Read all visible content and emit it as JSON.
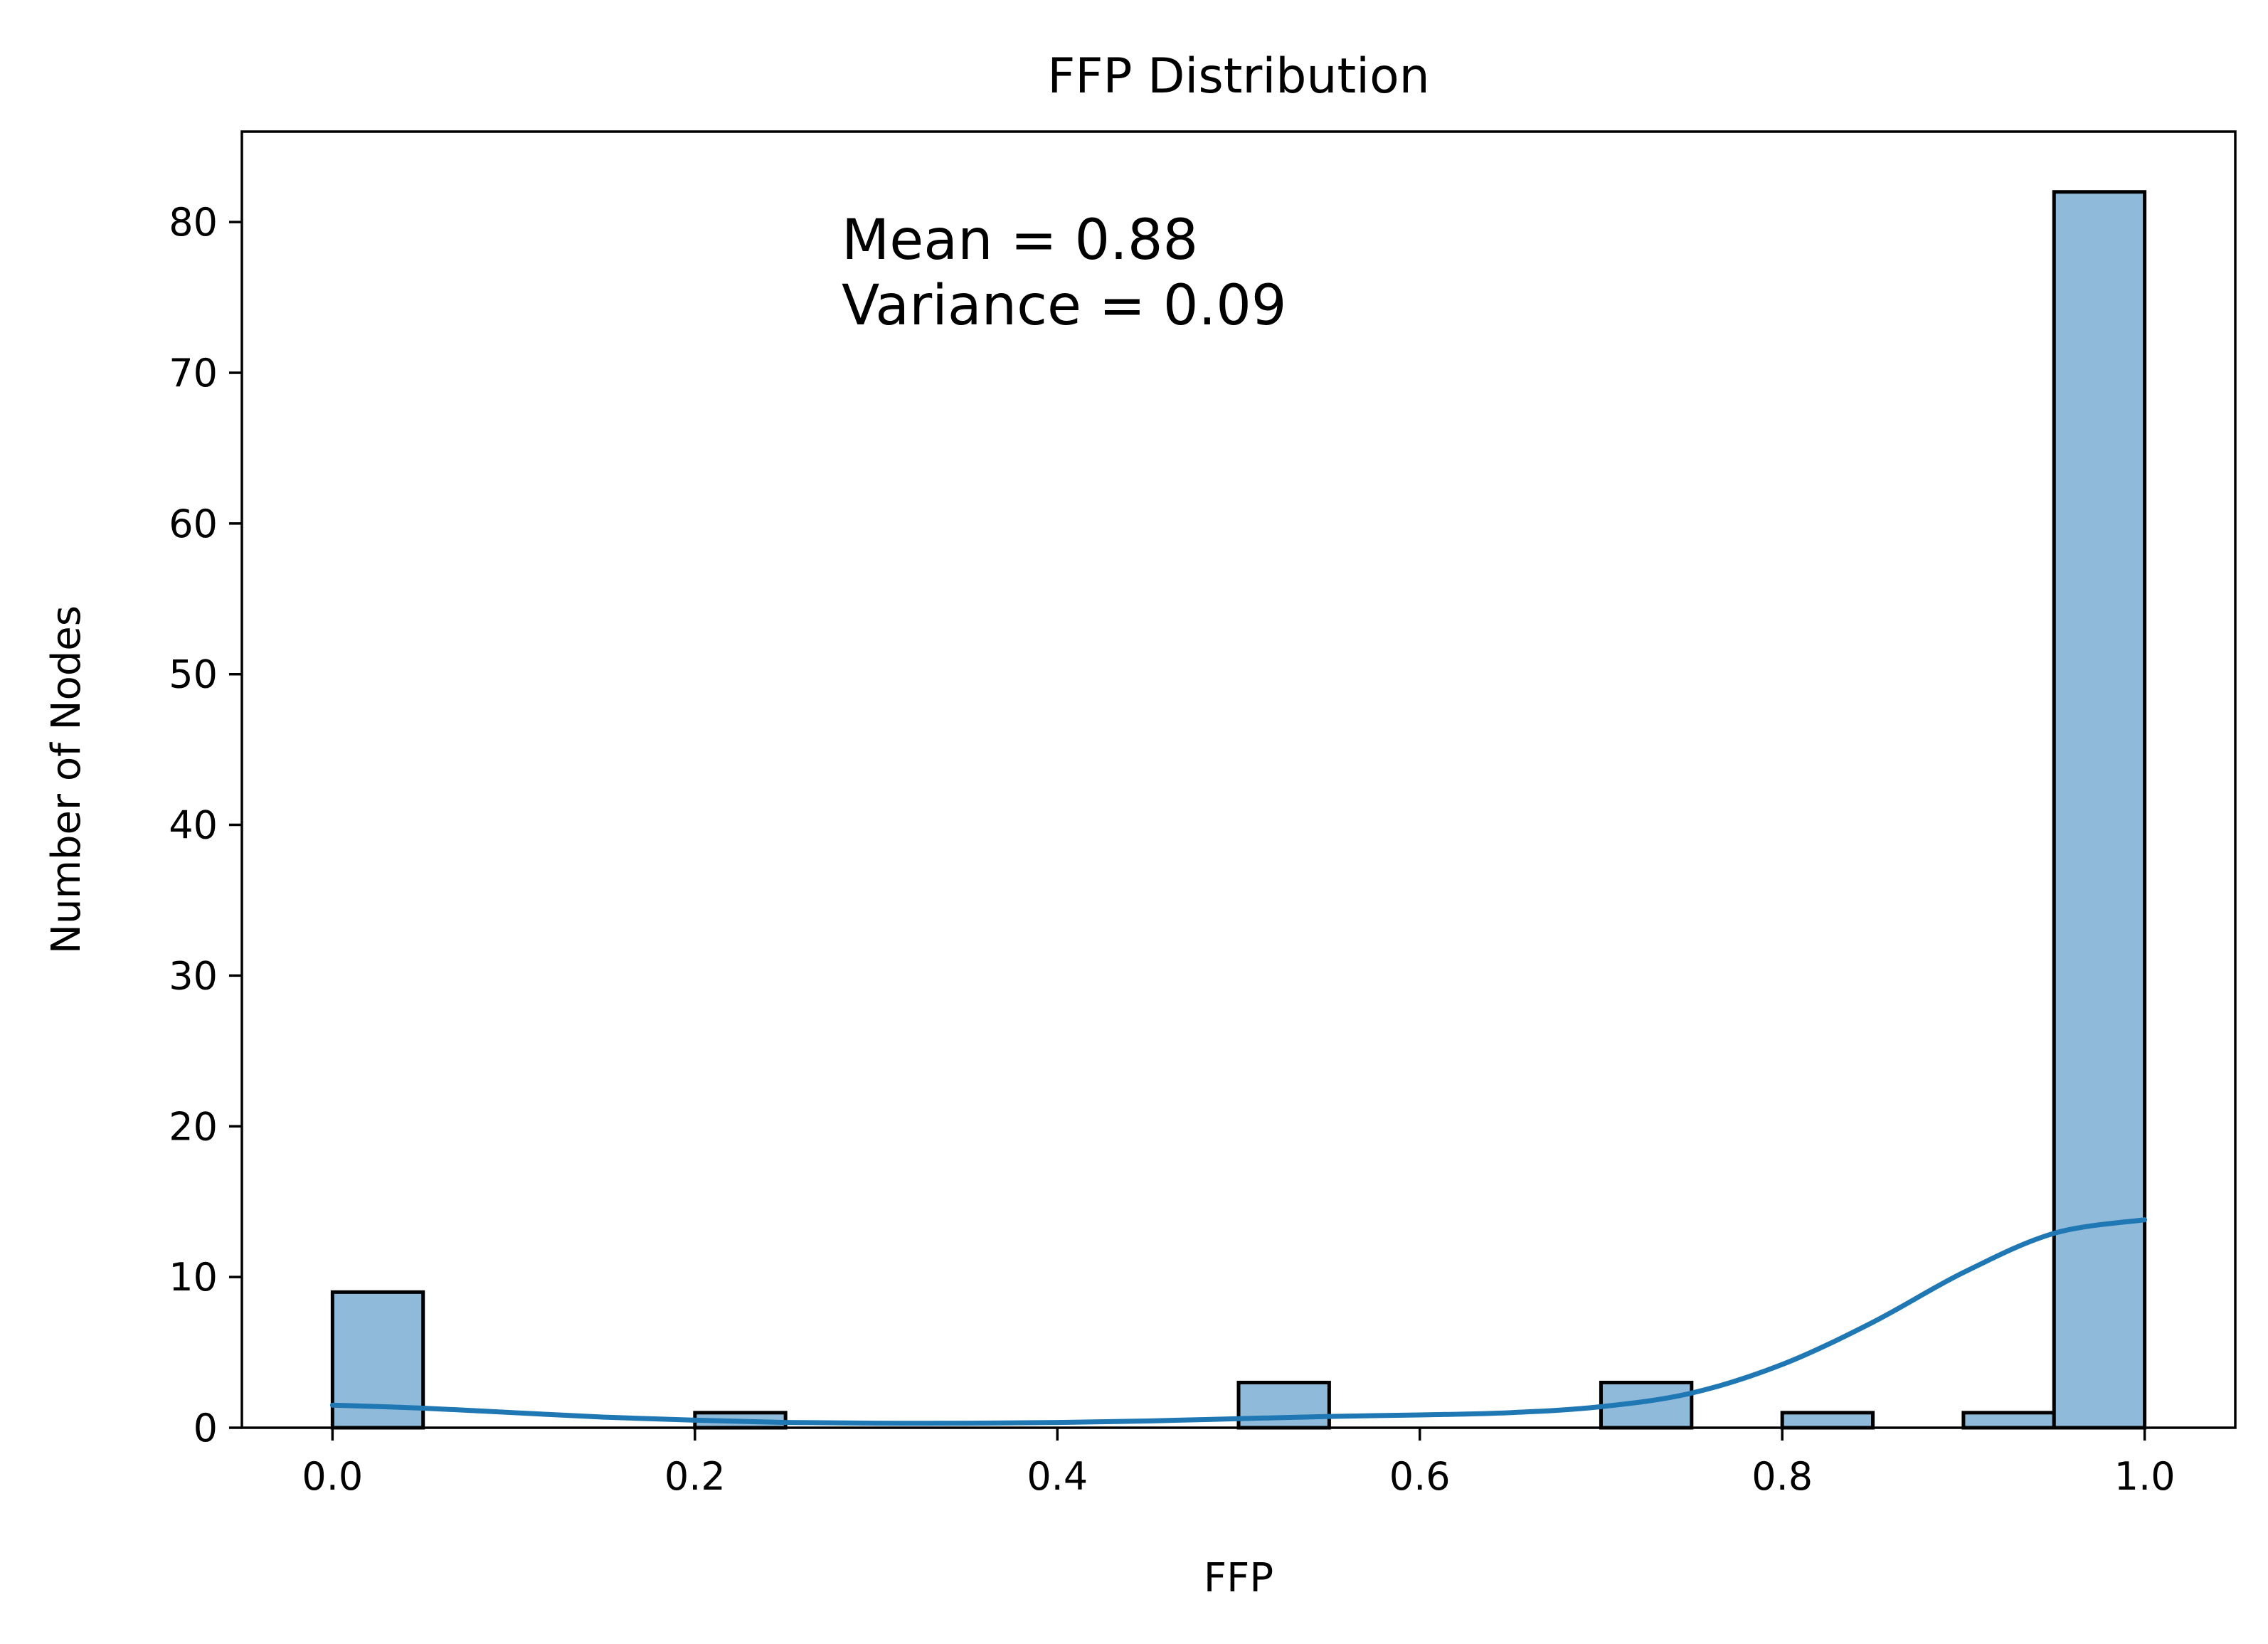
{
  "chart_data": {
    "type": "bar",
    "title": "FFP Distribution",
    "xlabel": "FFP",
    "ylabel": "Number of Nodes",
    "xlim": [
      -0.05,
      1.05
    ],
    "ylim": [
      0,
      86
    ],
    "bin_width": 0.05,
    "xticks": [
      "0.0",
      "0.2",
      "0.4",
      "0.6",
      "0.8",
      "1.0"
    ],
    "xtick_values": [
      0.0,
      0.2,
      0.4,
      0.6,
      0.8,
      1.0
    ],
    "yticks": [
      "0",
      "10",
      "20",
      "30",
      "40",
      "50",
      "60",
      "70",
      "80"
    ],
    "ytick_values": [
      0,
      10,
      20,
      30,
      40,
      50,
      60,
      70,
      80
    ],
    "bins": [
      {
        "x0": 0.0,
        "count": 9
      },
      {
        "x0": 0.2,
        "count": 1
      },
      {
        "x0": 0.5,
        "count": 3
      },
      {
        "x0": 0.7,
        "count": 3
      },
      {
        "x0": 0.8,
        "count": 1
      },
      {
        "x0": 0.9,
        "count": 1
      },
      {
        "x0": 0.95,
        "count": 82
      }
    ],
    "kde": {
      "x": [
        0.0,
        0.05,
        0.1,
        0.15,
        0.2,
        0.25,
        0.3,
        0.35,
        0.4,
        0.45,
        0.5,
        0.55,
        0.6,
        0.65,
        0.7,
        0.75,
        0.8,
        0.85,
        0.9,
        0.95,
        1.0
      ],
      "y": [
        1.5,
        1.3,
        1.0,
        0.7,
        0.5,
        0.35,
        0.3,
        0.3,
        0.35,
        0.45,
        0.6,
        0.75,
        0.85,
        1.0,
        1.4,
        2.3,
        4.2,
        7.0,
        10.3,
        12.9,
        13.8
      ]
    },
    "annotation": [
      "Mean = 0.88",
      "Variance = 0.09"
    ],
    "grid": false,
    "colors": {
      "bar_fill": "#8fbad9",
      "bar_edge": "#000000",
      "kde_line": "#1f77b4"
    }
  }
}
